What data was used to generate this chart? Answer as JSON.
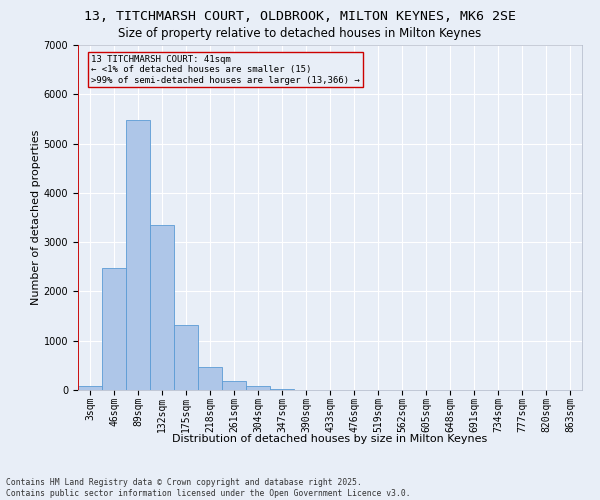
{
  "title1": "13, TITCHMARSH COURT, OLDBROOK, MILTON KEYNES, MK6 2SE",
  "title2": "Size of property relative to detached houses in Milton Keynes",
  "xlabel": "Distribution of detached houses by size in Milton Keynes",
  "ylabel": "Number of detached properties",
  "footer": "Contains HM Land Registry data © Crown copyright and database right 2025.\nContains public sector information licensed under the Open Government Licence v3.0.",
  "categories": [
    "3sqm",
    "46sqm",
    "89sqm",
    "132sqm",
    "175sqm",
    "218sqm",
    "261sqm",
    "304sqm",
    "347sqm",
    "390sqm",
    "433sqm",
    "476sqm",
    "519sqm",
    "562sqm",
    "605sqm",
    "648sqm",
    "691sqm",
    "734sqm",
    "777sqm",
    "820sqm",
    "863sqm"
  ],
  "values": [
    80,
    2480,
    5470,
    3340,
    1310,
    460,
    185,
    80,
    30,
    0,
    0,
    0,
    0,
    0,
    0,
    0,
    0,
    0,
    0,
    0,
    0
  ],
  "bar_color": "#aec6e8",
  "bar_edge_color": "#5b9bd5",
  "annotation_box_text": "13 TITCHMARSH COURT: 41sqm\n← <1% of detached houses are smaller (15)\n>99% of semi-detached houses are larger (13,366) →",
  "vline_color": "#cc0000",
  "box_edge_color": "#cc0000",
  "ylim": [
    0,
    7000
  ],
  "background_color": "#e8eef7",
  "grid_color": "#ffffff",
  "title1_fontsize": 9.5,
  "title2_fontsize": 8.5,
  "xlabel_fontsize": 8,
  "ylabel_fontsize": 8,
  "tick_fontsize": 7,
  "annotation_fontsize": 6.5,
  "footer_fontsize": 5.8
}
